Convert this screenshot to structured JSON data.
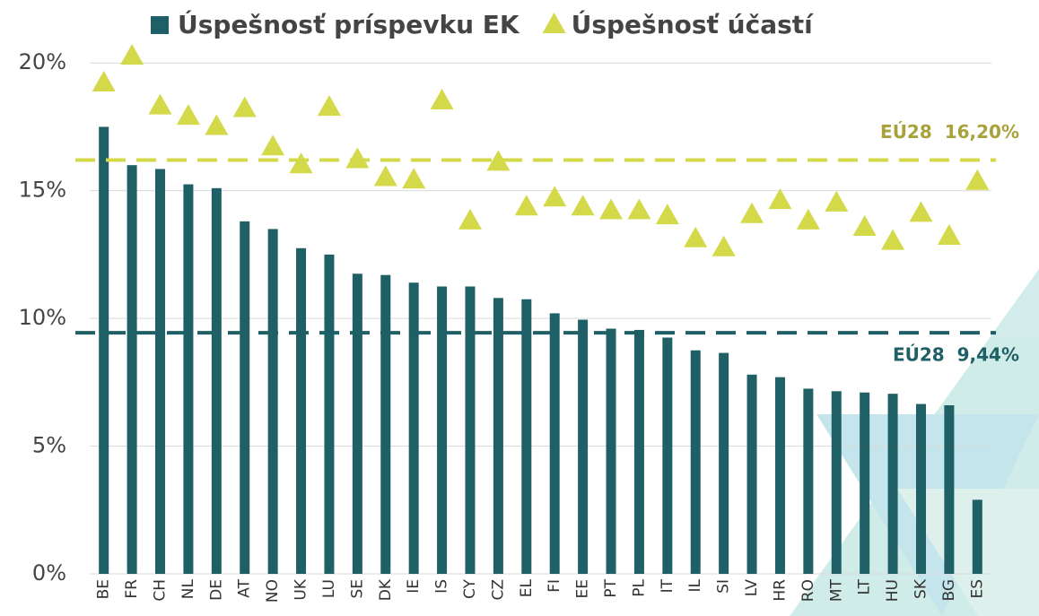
{
  "chart_data": {
    "type": "bar",
    "categories": [
      "BE",
      "FR",
      "CH",
      "NL",
      "DE",
      "AT",
      "NO",
      "UK",
      "LU",
      "SE",
      "DK",
      "IE",
      "IS",
      "CY",
      "CZ",
      "EL",
      "FI",
      "EE",
      "PT",
      "PL",
      "IT",
      "IL",
      "SI",
      "LV",
      "HR",
      "RO",
      "MT",
      "LT",
      "HU",
      "SK",
      "BG",
      "ES"
    ],
    "series": [
      {
        "name": "Úspešnosť príspevku EK",
        "type": "bar",
        "color": "#1f5f66",
        "values": [
          17.5,
          16.0,
          15.85,
          15.25,
          15.1,
          13.8,
          13.5,
          12.75,
          12.5,
          11.75,
          11.7,
          11.4,
          11.25,
          11.25,
          10.8,
          10.75,
          10.2,
          9.95,
          9.6,
          9.55,
          9.25,
          8.75,
          8.65,
          7.8,
          7.7,
          7.25,
          7.15,
          7.1,
          7.05,
          6.65,
          6.6,
          2.9
        ]
      },
      {
        "name": "Úspešnosť účastí",
        "type": "scatter",
        "color": "#d4d94a",
        "values": [
          19.2,
          20.25,
          18.3,
          17.9,
          17.5,
          18.2,
          16.7,
          16.0,
          18.25,
          16.2,
          15.5,
          15.4,
          18.5,
          13.8,
          16.1,
          14.35,
          14.7,
          14.35,
          14.2,
          14.2,
          14.0,
          13.1,
          12.75,
          14.05,
          14.6,
          13.8,
          14.5,
          13.55,
          13.0,
          14.1,
          13.2,
          15.35
        ]
      }
    ],
    "reference_lines": [
      {
        "label": "EÚ28  16,20%",
        "value": 16.2,
        "color": "#d4d94a",
        "label_color": "#a9a23b"
      },
      {
        "label": "EÚ28  9,44%",
        "value": 9.44,
        "color": "#1f5f66",
        "label_color": "#1f5f66"
      }
    ],
    "ylim": [
      0,
      20.5
    ],
    "yticks": [
      {
        "value": 0,
        "label": "0%"
      },
      {
        "value": 5,
        "label": "5%"
      },
      {
        "value": 10,
        "label": "10%"
      },
      {
        "value": 15,
        "label": "15%"
      },
      {
        "value": 20,
        "label": "20%"
      }
    ],
    "grid": true
  }
}
